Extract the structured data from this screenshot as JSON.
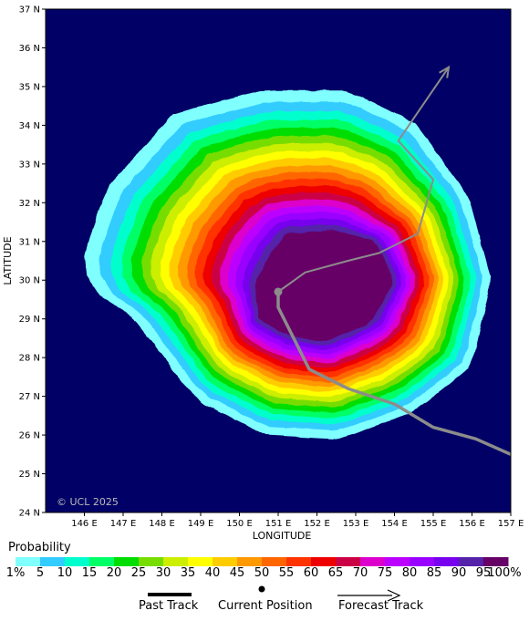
{
  "map": {
    "watermark": "© UCL 2025",
    "xlabel": "LONGITUDE",
    "ylabel": "LATITUDE",
    "lon_range": [
      145,
      157
    ],
    "lat_range": [
      24,
      37
    ],
    "lon_ticks": [
      "146 E",
      "147 E",
      "148 E",
      "149 E",
      "150 E",
      "151 E",
      "152 E",
      "153 E",
      "154 E",
      "155 E",
      "156 E",
      "157 E"
    ],
    "lat_ticks": [
      "24 N",
      "25 N",
      "26 N",
      "27 N",
      "28 N",
      "29 N",
      "30 N",
      "31 N",
      "32 N",
      "33 N",
      "34 N",
      "35 N",
      "36 N",
      "37 N"
    ],
    "background_color": "#000066",
    "track_color": "#8c8c8c",
    "past_track": [
      [
        157.0,
        25.5
      ],
      [
        156.1,
        25.9
      ],
      [
        155.0,
        26.2
      ],
      [
        154.0,
        26.8
      ],
      [
        152.8,
        27.2
      ],
      [
        151.8,
        27.7
      ],
      [
        151.4,
        28.5
      ],
      [
        151.0,
        29.3
      ],
      [
        151.0,
        29.7
      ]
    ],
    "current_position": [
      151.0,
      29.7
    ],
    "forecast_track": [
      [
        151.0,
        29.7
      ],
      [
        151.7,
        30.2
      ],
      [
        152.8,
        30.5
      ],
      [
        153.6,
        30.7
      ],
      [
        154.6,
        31.2
      ],
      [
        155.0,
        32.6
      ],
      [
        154.1,
        33.6
      ],
      [
        155.4,
        35.5
      ]
    ]
  },
  "legend": {
    "title": "Probability",
    "levels": [
      "1%",
      "5",
      "10",
      "15",
      "20",
      "25",
      "30",
      "35",
      "40",
      "45",
      "50",
      "55",
      "60",
      "65",
      "70",
      "75",
      "80",
      "85",
      "90",
      "95",
      "100%"
    ],
    "colors": [
      "#80ffff",
      "#33ccff",
      "#00ffcc",
      "#00ff66",
      "#00dd00",
      "#77dd00",
      "#ccee00",
      "#ffff00",
      "#ffcc00",
      "#ff9900",
      "#ff6600",
      "#ff3300",
      "#ee0000",
      "#cc0044",
      "#dd00cc",
      "#bb00ff",
      "#9900ff",
      "#7700ee",
      "#5522aa",
      "#660066"
    ],
    "past_track_label": "Past Track",
    "current_position_label": "Current Position",
    "forecast_track_label": "Forecast Track"
  }
}
